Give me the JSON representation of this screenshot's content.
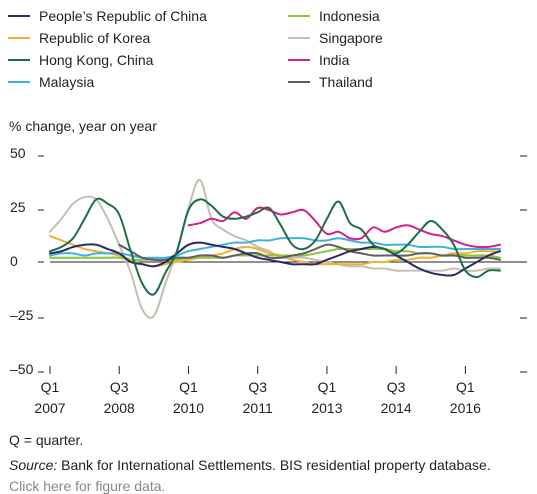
{
  "legend": [
    {
      "name": "People’s Republic of China",
      "color": "#2b2a66"
    },
    {
      "name": "Republic of Korea",
      "color": "#f0b030"
    },
    {
      "name": "Hong Kong, China",
      "color": "#1f6e48"
    },
    {
      "name": "Malaysia",
      "color": "#3fb1dc"
    },
    {
      "name": "Indonesia",
      "color": "#8cc63f"
    },
    {
      "name": "Singapore",
      "color": "#c2c0b3"
    },
    {
      "name": "India",
      "color": "#d81e8c"
    },
    {
      "name": "Thailand",
      "color": "#5f5f5f"
    }
  ],
  "y_axis_title": "% change, year on year",
  "notes": {
    "quarter": "Q = quarter.",
    "source_label": "Source:",
    "source_text": " Bank for International Settlements. BIS residential property database.",
    "cut_text": "Click here for figure data."
  },
  "chart_data": {
    "type": "line",
    "ylabel": "% change, year on year",
    "ylim": [
      -50,
      50
    ],
    "yticks": [
      50,
      25,
      0,
      -25,
      -50
    ],
    "ytick_labels": [
      "50",
      "25",
      "0",
      "–25",
      "–50"
    ],
    "xlim": [
      "2007Q1",
      "2016Q4"
    ],
    "xticks": [
      {
        "quarter": "Q1",
        "year": "2007",
        "at": "2007Q1"
      },
      {
        "quarter": "Q3",
        "year": "2008",
        "at": "2008Q3"
      },
      {
        "quarter": "Q1",
        "year": "2010",
        "at": "2010Q1"
      },
      {
        "quarter": "Q3",
        "year": "2011",
        "at": "2011Q3"
      },
      {
        "quarter": "Q1",
        "year": "2013",
        "at": "2013Q1"
      },
      {
        "quarter": "Q3",
        "year": "2014",
        "at": "2014Q3"
      },
      {
        "quarter": "Q1",
        "year": "2016",
        "at": "2016Q1"
      }
    ],
    "grid": false,
    "legend_position": "top",
    "series": [
      {
        "name": "Singapore",
        "color": "#c2c0b3",
        "start": "2007Q1",
        "values": [
          14,
          20,
          27,
          30,
          29,
          20,
          8,
          -5,
          -22,
          -25,
          -10,
          5,
          25,
          38,
          20,
          15,
          12,
          10,
          7,
          5,
          2,
          2,
          2,
          1,
          0,
          -1,
          -2,
          -2,
          -3,
          -3,
          -4,
          -4,
          -4,
          -4,
          -4,
          -3,
          -4,
          -4,
          -3,
          -3
        ]
      },
      {
        "name": "Republic of Korea",
        "color": "#f0b030",
        "start": "2007Q1",
        "values": [
          12,
          10,
          8,
          6,
          5,
          4,
          3,
          1,
          -1,
          -2,
          -1,
          0,
          1,
          2,
          3,
          4,
          6,
          7,
          6,
          4,
          3,
          1,
          0,
          -1,
          -1,
          -1,
          -1,
          -1,
          0,
          0,
          1,
          1,
          2,
          2,
          3,
          4,
          4,
          5,
          5,
          5
        ]
      },
      {
        "name": "Indonesia",
        "color": "#8cc63f",
        "start": "2007Q1",
        "values": [
          2,
          2,
          2,
          2,
          2,
          2,
          2,
          1,
          1,
          1,
          1,
          1,
          2,
          2,
          2,
          2,
          3,
          3,
          3,
          3,
          3,
          3,
          3,
          4,
          5,
          6,
          6,
          6,
          6,
          6,
          5,
          5,
          4,
          4,
          3,
          3,
          3,
          3,
          3,
          2
        ]
      },
      {
        "name": "Malaysia",
        "color": "#3fb1dc",
        "start": "2007Q1",
        "values": [
          3,
          4,
          4,
          3,
          4,
          4,
          4,
          3,
          2,
          2,
          2,
          3,
          5,
          6,
          7,
          8,
          9,
          9,
          10,
          10,
          11,
          11,
          11,
          10,
          10,
          11,
          10,
          9,
          9,
          8,
          8,
          8,
          7,
          7,
          7,
          6,
          6,
          6,
          6,
          6
        ]
      },
      {
        "name": "Thailand",
        "color": "#5f5f5f",
        "start": "2008Q3",
        "values": [
          8,
          5,
          2,
          1,
          1,
          2,
          2,
          3,
          3,
          2,
          3,
          4,
          4,
          2,
          2,
          3,
          4,
          6,
          8,
          7,
          5,
          4,
          3,
          3,
          3,
          3,
          4,
          4,
          3,
          3,
          2,
          2,
          2,
          1
        ]
      },
      {
        "name": "People’s Republic of China",
        "color": "#2b2a66",
        "start": "2007Q1",
        "values": [
          4,
          5,
          7,
          8,
          8,
          6,
          4,
          0,
          -1,
          -2,
          0,
          4,
          8,
          9,
          8,
          7,
          6,
          4,
          2,
          1,
          0,
          -1,
          -1,
          -1,
          1,
          3,
          5,
          6,
          7,
          6,
          3,
          0,
          -3,
          -5,
          -6,
          -6,
          -3,
          0,
          3,
          5
        ]
      },
      {
        "name": "India",
        "color": "#d81e8c",
        "start": "2010Q1",
        "values": [
          17,
          18,
          20,
          19,
          23,
          20,
          25,
          24,
          22,
          23,
          24,
          19,
          13,
          14,
          11,
          11,
          16,
          14,
          16,
          17,
          15,
          13,
          12,
          10,
          8,
          7,
          7,
          8
        ]
      },
      {
        "name": "Hong Kong, China",
        "color": "#1f6e48",
        "start": "2007Q1",
        "values": [
          5,
          7,
          11,
          20,
          29,
          27,
          22,
          5,
          -10,
          -15,
          -5,
          5,
          24,
          29,
          26,
          21,
          20,
          21,
          23,
          25,
          17,
          8,
          6,
          10,
          20,
          28,
          18,
          15,
          8,
          6,
          4,
          8,
          14,
          19,
          15,
          8,
          -4,
          -7,
          -4,
          -4
        ]
      }
    ]
  }
}
